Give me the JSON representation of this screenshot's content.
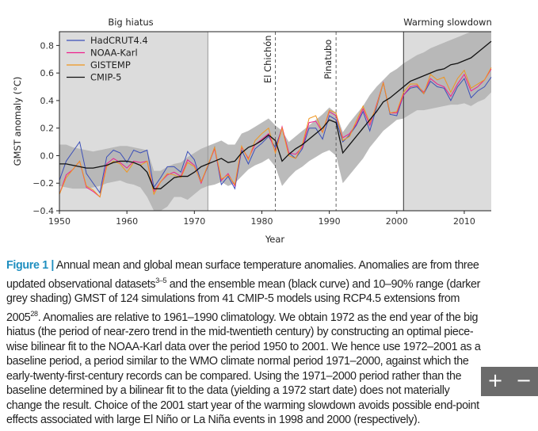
{
  "caption": {
    "figure_label": "Figure 1 |",
    "text_1": " Annual mean and global mean surface temperature anomalies. Anomalies are from three updated observational datasets",
    "sup_1": "3–5",
    "text_2": " and the ensemble mean (black curve) and 10–90% range (darker grey shading) GMST of 124 simulations from 41 CMIP-5 models using RCP4.5 extensions from 2005",
    "sup_2": "28",
    "text_3": ". Anomalies are relative to 1961–1990 climatology. We obtain 1972 as the end year of the big hiatus (the period of near-zero trend in the mid-twentieth century) by constructing an optimal piece-wise bilinear fit to the NOAA-Karl data over the period 1950 to 2001. We hence use 1972–2001 as a baseline period, a period similar to the WMO climate normal period 1971–2000, against which the early-twenty-first-century records can be compared. Using the 1971–2000 period rather than the baseline determined by a bilinear fit to the data (yielding a 1972 start date) does not materially change the result. Choice of the 2001 start year of the warming slowdown avoids possible end-point effects associated with large El Niño or La Niña events in 1998 and 2000 (respectively)."
  },
  "viewer": {
    "zoom_in": "+",
    "zoom_out": "−"
  },
  "chart_data": {
    "type": "line",
    "xlabel": "Year",
    "ylabel": "GMST anomaly (°C)",
    "xlim": [
      1950,
      2014
    ],
    "ylim": [
      -0.4,
      0.9
    ],
    "xticks": [
      "1950",
      "1960",
      "1970",
      "1980",
      "1990",
      "2000",
      "2010"
    ],
    "yticks": [
      "−0.4",
      "−0.2",
      "0.0",
      "0.2",
      "0.4",
      "0.6",
      "0.8"
    ],
    "ytick_values": [
      -0.4,
      -0.2,
      0,
      0.2,
      0.4,
      0.6,
      0.8
    ],
    "legend_position": "top-left",
    "periods": [
      {
        "label": "Big hiatus",
        "start": 1950,
        "end": 1972,
        "color": "#dcdcdc"
      },
      {
        "label": "Warming slowdown",
        "start": 2001,
        "end": 2014,
        "color": "#dcdcdc"
      }
    ],
    "events": [
      {
        "label": "El Chichón",
        "year": 1982
      },
      {
        "label": "Pinatubo",
        "year": 1991
      }
    ],
    "x_start": 1950,
    "series": [
      {
        "name": "HadCRUT4.4",
        "color": "#3b4fb8",
        "values": [
          -0.18,
          -0.04,
          0.03,
          0.1,
          -0.13,
          -0.2,
          -0.27,
          -0.01,
          0.04,
          0.02,
          -0.05,
          0.04,
          0.02,
          0.04,
          -0.23,
          -0.16,
          -0.08,
          -0.08,
          -0.12,
          0.03,
          -0.03,
          -0.19,
          -0.08,
          0.06,
          -0.21,
          -0.15,
          -0.24,
          0.04,
          -0.06,
          0.05,
          0.09,
          0.14,
          0.06,
          0.2,
          0.02,
          -0.02,
          0.05,
          0.2,
          0.2,
          0.12,
          0.29,
          0.26,
          0.1,
          0.15,
          0.22,
          0.32,
          0.18,
          0.35,
          0.53,
          0.3,
          0.29,
          0.44,
          0.49,
          0.5,
          0.45,
          0.54,
          0.5,
          0.49,
          0.4,
          0.5,
          0.56,
          0.42,
          0.47,
          0.5,
          0.57
        ]
      },
      {
        "name": "NOAA-Karl",
        "color": "#ee1f8c",
        "values": [
          -0.28,
          -0.14,
          -0.1,
          -0.04,
          -0.23,
          -0.26,
          -0.3,
          -0.06,
          -0.02,
          -0.05,
          -0.09,
          -0.04,
          -0.05,
          -0.04,
          -0.26,
          -0.19,
          -0.14,
          -0.12,
          -0.15,
          -0.03,
          -0.07,
          -0.2,
          -0.07,
          0.05,
          -0.18,
          -0.13,
          -0.22,
          0.06,
          -0.02,
          0.08,
          0.12,
          0.16,
          0.03,
          0.21,
          0.02,
          0.01,
          0.06,
          0.24,
          0.25,
          0.17,
          0.32,
          0.29,
          0.13,
          0.16,
          0.23,
          0.34,
          0.22,
          0.37,
          0.53,
          0.31,
          0.31,
          0.44,
          0.5,
          0.51,
          0.46,
          0.56,
          0.52,
          0.5,
          0.43,
          0.52,
          0.59,
          0.47,
          0.5,
          0.55,
          0.63
        ]
      },
      {
        "name": "GISTEMP",
        "color": "#f0961e",
        "values": [
          -0.28,
          -0.16,
          -0.1,
          -0.04,
          -0.22,
          -0.25,
          -0.3,
          -0.08,
          -0.04,
          -0.06,
          -0.12,
          -0.05,
          -0.07,
          -0.04,
          -0.28,
          -0.19,
          -0.13,
          -0.14,
          -0.16,
          -0.05,
          -0.08,
          -0.19,
          -0.07,
          0.06,
          -0.17,
          -0.14,
          -0.21,
          0.07,
          -0.03,
          0.11,
          0.16,
          0.2,
          0.02,
          0.2,
          0.0,
          -0.02,
          0.08,
          0.27,
          0.29,
          0.17,
          0.33,
          0.31,
          0.11,
          0.14,
          0.25,
          0.36,
          0.24,
          0.36,
          0.53,
          0.31,
          0.32,
          0.46,
          0.52,
          0.52,
          0.45,
          0.59,
          0.55,
          0.57,
          0.46,
          0.56,
          0.62,
          0.49,
          0.52,
          0.55,
          0.64
        ]
      },
      {
        "name": "CMIP-5",
        "color": "#111111",
        "values": [
          -0.06,
          -0.06,
          -0.07,
          -0.08,
          -0.09,
          -0.09,
          -0.08,
          -0.07,
          -0.05,
          -0.04,
          -0.04,
          -0.05,
          -0.07,
          -0.12,
          -0.24,
          -0.24,
          -0.2,
          -0.16,
          -0.15,
          -0.15,
          -0.12,
          -0.08,
          -0.06,
          -0.04,
          -0.02,
          -0.05,
          -0.04,
          0.02,
          0.06,
          0.08,
          0.11,
          0.15,
          0.11,
          -0.04,
          0.01,
          0.05,
          0.08,
          0.12,
          0.16,
          0.2,
          0.26,
          0.24,
          0.02,
          0.08,
          0.14,
          0.2,
          0.26,
          0.32,
          0.39,
          0.42,
          0.46,
          0.5,
          0.54,
          0.56,
          0.58,
          0.6,
          0.62,
          0.63,
          0.66,
          0.67,
          0.69,
          0.71,
          0.75,
          0.79,
          0.83
        ]
      }
    ],
    "cmip5_range_10_90": {
      "color": "#b4b4b4",
      "lower": [
        -0.22,
        -0.23,
        -0.24,
        -0.24,
        -0.24,
        -0.23,
        -0.22,
        -0.2,
        -0.19,
        -0.18,
        -0.2,
        -0.21,
        -0.23,
        -0.3,
        -0.41,
        -0.4,
        -0.37,
        -0.3,
        -0.3,
        -0.32,
        -0.28,
        -0.24,
        -0.22,
        -0.21,
        -0.19,
        -0.22,
        -0.2,
        -0.15,
        -0.1,
        -0.07,
        -0.05,
        -0.02,
        -0.08,
        -0.22,
        -0.16,
        -0.11,
        -0.08,
        -0.04,
        -0.01,
        0.02,
        0.04,
        0.0,
        -0.2,
        -0.14,
        -0.08,
        -0.02,
        0.06,
        0.12,
        0.18,
        0.22,
        0.26,
        0.27,
        0.3,
        0.33,
        0.33,
        0.34,
        0.35,
        0.36,
        0.37,
        0.37,
        0.38,
        0.36,
        0.39,
        0.41,
        0.46
      ],
      "upper": [
        0.08,
        0.08,
        0.06,
        0.05,
        0.04,
        0.03,
        0.04,
        0.05,
        0.06,
        0.07,
        0.07,
        0.06,
        0.05,
        0.04,
        -0.11,
        -0.11,
        -0.08,
        -0.06,
        -0.05,
        -0.01,
        0.02,
        0.05,
        0.07,
        0.09,
        0.11,
        0.08,
        0.08,
        0.16,
        0.18,
        0.21,
        0.24,
        0.27,
        0.22,
        0.18,
        0.1,
        0.14,
        0.18,
        0.22,
        0.26,
        0.3,
        0.35,
        0.31,
        0.17,
        0.24,
        0.3,
        0.36,
        0.44,
        0.5,
        0.55,
        0.6,
        0.63,
        0.67,
        0.7,
        0.73,
        0.75,
        0.78,
        0.8,
        0.82,
        0.84,
        0.86,
        0.88,
        0.9,
        0.9,
        0.9,
        0.9
      ]
    }
  }
}
